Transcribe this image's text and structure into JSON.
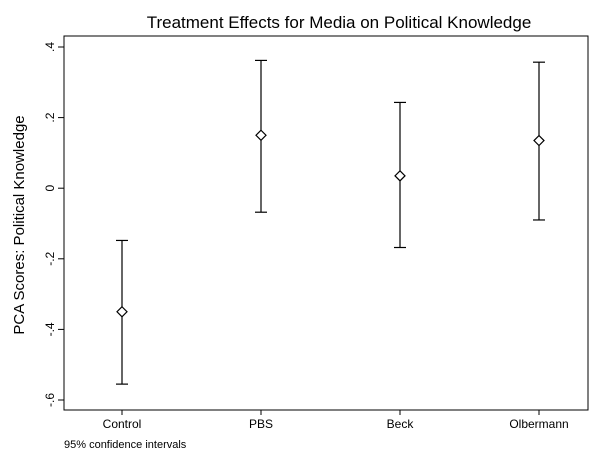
{
  "chart_data": {
    "type": "scatter",
    "title": "Treatment Effects for Media on Political Knowledge",
    "xlabel": "",
    "ylabel": "PCA Scores: Political Knowledge",
    "categories": [
      "Control",
      "PBS",
      "Beck",
      "Olbermann"
    ],
    "values": [
      -0.35,
      0.15,
      0.035,
      0.135
    ],
    "ci_low": [
      -0.555,
      -0.068,
      -0.168,
      -0.09
    ],
    "ci_high": [
      -0.148,
      0.362,
      0.243,
      0.357
    ],
    "ylim": [
      -0.6,
      0.4
    ],
    "yticks": [
      -0.6,
      -0.4,
      -0.2,
      0,
      0.2,
      0.4
    ],
    "ytick_labels": [
      "-.6",
      "-.4",
      "-.2",
      "0",
      ".2",
      ".4"
    ],
    "grid": false,
    "marker": "hollow-diamond",
    "note": "95% confidence intervals"
  },
  "colors": {
    "ink": "#000000",
    "background": "#ffffff"
  }
}
